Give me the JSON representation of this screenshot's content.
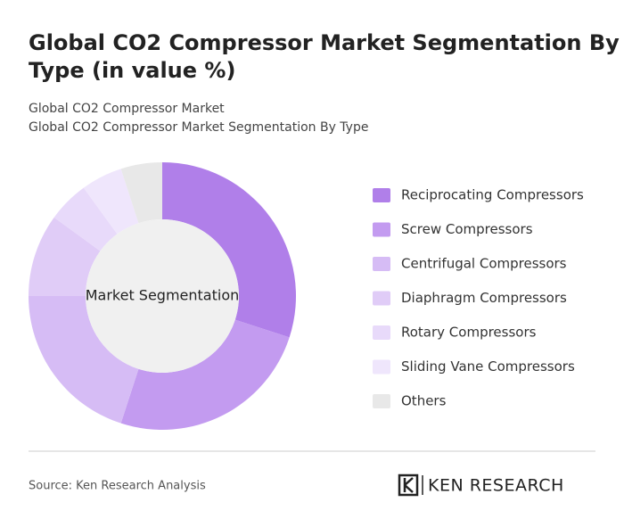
{
  "chart_data": {
    "type": "donut",
    "title": "Global CO2 Compressor Market Segmentation By Type (in value %)",
    "subtitles": [
      "Global CO2 Compressor Market",
      "Global CO2 Compressor Market Segmentation By Type"
    ],
    "center_label": "Market Segmentation",
    "categories": [
      "Reciprocating Compressors",
      "Screw Compressors",
      "Centrifugal Compressors",
      "Diaphragm Compressors",
      "Rotary Compressors",
      "Sliding Vane Compressors",
      "Others"
    ],
    "values": [
      30,
      25,
      20,
      10,
      5,
      5,
      5
    ],
    "colors": [
      "#b07fe9",
      "#c39bf0",
      "#d6bcf5",
      "#e0ccf7",
      "#e8dafa",
      "#efe6fc",
      "#e8e8e8"
    ],
    "source": "Source: Ken Research Analysis",
    "logo": "KEN RESEARCH"
  }
}
